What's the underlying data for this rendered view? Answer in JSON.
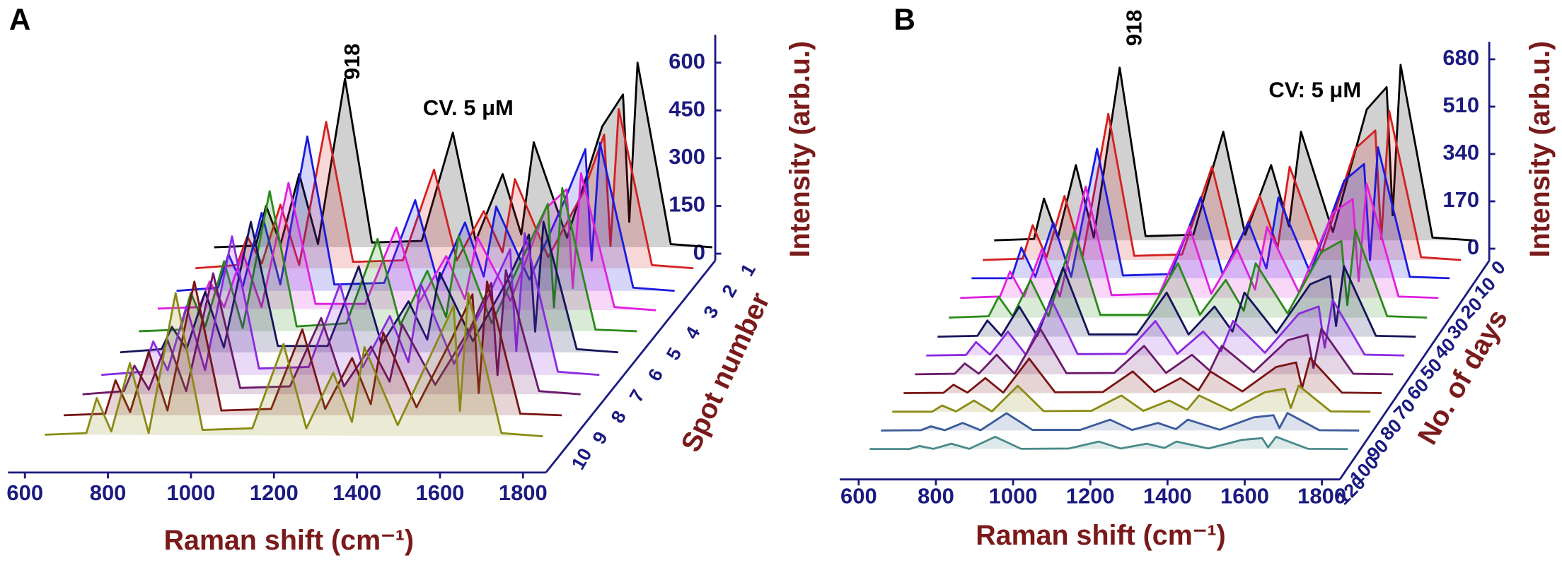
{
  "chart_data": [
    {
      "type": "waterfall",
      "panel_label": "A",
      "title": "CV. 5 μM",
      "annotation": "918",
      "x_label": "Raman shift (cm⁻¹)",
      "y_label": "Intensity (arb.u.)",
      "z_label": "Spot number",
      "xlim": [
        600,
        1800
      ],
      "xticks": [
        600,
        800,
        1000,
        1200,
        1400,
        1600,
        1800
      ],
      "ylim": [
        0,
        650
      ],
      "yticks": [
        0,
        150,
        300,
        450,
        600
      ],
      "x": [
        600,
        700,
        725,
        760,
        805,
        850,
        915,
        980,
        1100,
        1175,
        1230,
        1295,
        1340,
        1370,
        1450,
        1535,
        1585,
        1600,
        1620,
        1700,
        1800
      ],
      "series": [
        {
          "name": "1",
          "color": "#000000",
          "values": [
            20,
            25,
            150,
            30,
            250,
            30,
            550,
            35,
            40,
            380,
            40,
            250,
            60,
            350,
            50,
            400,
            500,
            100,
            600,
            30,
            20
          ]
        },
        {
          "name": "2",
          "color": "#d42020",
          "values": [
            20,
            30,
            120,
            35,
            220,
            30,
            480,
            40,
            45,
            330,
            45,
            200,
            70,
            300,
            55,
            260,
            440,
            90,
            520,
            30,
            20
          ]
        },
        {
          "name": "3",
          "color": "#1a1ae0",
          "values": [
            15,
            25,
            130,
            30,
            260,
            35,
            500,
            35,
            40,
            300,
            40,
            230,
            60,
            280,
            50,
            300,
            460,
            110,
            480,
            25,
            15
          ]
        },
        {
          "name": "4",
          "color": "#e020e0",
          "values": [
            25,
            30,
            110,
            30,
            200,
            30,
            420,
            40,
            40,
            280,
            45,
            190,
            55,
            250,
            50,
            340,
            400,
            90,
            450,
            30,
            20
          ]
        },
        {
          "name": "5",
          "color": "#2a8a1a",
          "values": [
            20,
            25,
            140,
            35,
            240,
            30,
            460,
            35,
            45,
            310,
            40,
            210,
            65,
            320,
            45,
            280,
            420,
            95,
            470,
            25,
            20
          ]
        },
        {
          "name": "6",
          "color": "#14145a",
          "values": [
            20,
            30,
            100,
            30,
            210,
            35,
            430,
            40,
            40,
            290,
            45,
            180,
            60,
            270,
            55,
            250,
            390,
            85,
            430,
            30,
            20
          ]
        },
        {
          "name": "7",
          "color": "#8a2ae0",
          "values": [
            15,
            25,
            120,
            30,
            230,
            30,
            450,
            35,
            40,
            300,
            40,
            200,
            55,
            300,
            50,
            270,
            410,
            90,
            460,
            25,
            15
          ]
        },
        {
          "name": "8",
          "color": "#6a1a6a",
          "values": [
            20,
            30,
            110,
            35,
            190,
            30,
            400,
            40,
            45,
            260,
            45,
            170,
            60,
            240,
            50,
            230,
            370,
            80,
            410,
            30,
            20
          ]
        },
        {
          "name": "9",
          "color": "#7a1414",
          "values": [
            20,
            25,
            130,
            30,
            220,
            35,
            440,
            35,
            40,
            290,
            40,
            200,
            55,
            280,
            45,
            260,
            400,
            90,
            440,
            25,
            20
          ]
        },
        {
          "name": "10",
          "color": "#8a8a14",
          "values": [
            25,
            30,
            140,
            35,
            250,
            30,
            470,
            40,
            45,
            310,
            45,
            220,
            65,
            300,
            55,
            290,
            430,
            100,
            470,
            30,
            20
          ]
        }
      ]
    },
    {
      "type": "waterfall",
      "panel_label": "B",
      "title": "CV: 5 μM",
      "annotation": "918",
      "x_label": "Raman shift (cm⁻¹)",
      "y_label": "Intensity (arb.u.)",
      "z_label": "No. of days",
      "xlim": [
        600,
        1800
      ],
      "xticks": [
        600,
        800,
        1000,
        1200,
        1400,
        1600,
        1800
      ],
      "ylim": [
        0,
        700
      ],
      "yticks": [
        0,
        170,
        340,
        510,
        680
      ],
      "x": [
        600,
        700,
        725,
        760,
        805,
        850,
        915,
        980,
        1100,
        1175,
        1230,
        1295,
        1340,
        1370,
        1450,
        1535,
        1585,
        1600,
        1620,
        1700,
        1800
      ],
      "series": [
        {
          "name": "0",
          "color": "#000000",
          "values": [
            30,
            35,
            180,
            40,
            300,
            40,
            650,
            45,
            50,
            420,
            50,
            300,
            80,
            420,
            60,
            500,
            580,
            120,
            660,
            40,
            30
          ]
        },
        {
          "name": "10",
          "color": "#d42020",
          "values": [
            25,
            30,
            150,
            35,
            255,
            35,
            550,
            40,
            45,
            360,
            45,
            255,
            70,
            360,
            50,
            425,
            490,
            100,
            560,
            35,
            25
          ]
        },
        {
          "name": "20",
          "color": "#1a1ae0",
          "values": [
            25,
            25,
            135,
            30,
            225,
            30,
            490,
            35,
            40,
            315,
            40,
            225,
            60,
            315,
            45,
            375,
            435,
            90,
            495,
            30,
            25
          ]
        },
        {
          "name": "30",
          "color": "#e020e0",
          "values": [
            20,
            25,
            115,
            25,
            195,
            25,
            420,
            30,
            35,
            275,
            35,
            195,
            50,
            275,
            40,
            325,
            375,
            80,
            430,
            25,
            20
          ]
        },
        {
          "name": "40",
          "color": "#2a8a1a",
          "values": [
            15,
            20,
            90,
            20,
            150,
            20,
            325,
            25,
            25,
            210,
            25,
            150,
            40,
            210,
            30,
            250,
            290,
            60,
            330,
            20,
            15
          ]
        },
        {
          "name": "50",
          "color": "#14145a",
          "values": [
            12,
            15,
            70,
            15,
            120,
            15,
            260,
            20,
            20,
            170,
            20,
            120,
            30,
            170,
            25,
            200,
            230,
            50,
            265,
            15,
            12
          ]
        },
        {
          "name": "60",
          "color": "#8a2ae0",
          "values": [
            10,
            12,
            58,
            13,
            96,
            13,
            208,
            15,
            16,
            134,
            16,
            96,
            26,
            134,
            20,
            160,
            186,
            38,
            210,
            13,
            10
          ]
        },
        {
          "name": "70",
          "color": "#6a1a6a",
          "values": [
            8,
            10,
            47,
            10,
            78,
            10,
            170,
            12,
            13,
            110,
            13,
            78,
            21,
            110,
            16,
            130,
            150,
            31,
            172,
            10,
            8
          ]
        },
        {
          "name": "80",
          "color": "#7a1414",
          "values": [
            6,
            7,
            36,
            8,
            60,
            8,
            130,
            9,
            10,
            84,
            10,
            60,
            16,
            84,
            12,
            100,
            116,
            24,
            132,
            8,
            6
          ]
        },
        {
          "name": "90",
          "color": "#8a8a14",
          "values": [
            5,
            5,
            27,
            6,
            45,
            6,
            98,
            7,
            8,
            63,
            8,
            45,
            12,
            63,
            9,
            75,
            87,
            18,
            99,
            6,
            5
          ]
        },
        {
          "name": "100",
          "color": "#3a5a9a",
          "values": [
            3,
            4,
            18,
            4,
            30,
            4,
            65,
            5,
            5,
            42,
            5,
            30,
            8,
            42,
            6,
            50,
            58,
            12,
            66,
            4,
            3
          ]
        },
        {
          "name": "120",
          "color": "#4a8a8a",
          "values": [
            2,
            2,
            13,
            3,
            21,
            3,
            46,
            3,
            4,
            29,
            4,
            21,
            6,
            29,
            4,
            35,
            41,
            8,
            46,
            3,
            2
          ]
        }
      ]
    }
  ]
}
